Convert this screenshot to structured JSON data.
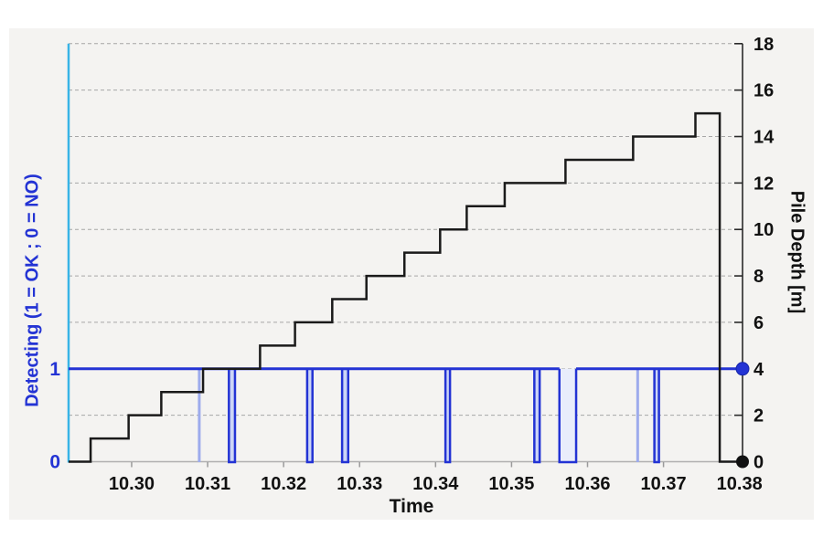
{
  "figure": {
    "x_axis": {
      "label": "Time",
      "range": [
        10.2917,
        10.3804
      ],
      "ticks": [
        {
          "label": "10.30",
          "value": 10.3
        },
        {
          "label": "10.31",
          "value": 10.31
        },
        {
          "label": "10.32",
          "value": 10.32
        },
        {
          "label": "10.33",
          "value": 10.33
        },
        {
          "label": "10.34",
          "value": 10.34
        },
        {
          "label": "10.35",
          "value": 10.35
        },
        {
          "label": "10.36",
          "value": 10.36
        },
        {
          "label": "10.37",
          "value": 10.37
        },
        {
          "label": "10.38",
          "value": 10.38
        }
      ]
    },
    "right_axis": {
      "label": "Pile Depth [m]",
      "range": [
        0,
        18
      ],
      "ticks": [
        0,
        2,
        4,
        6,
        8,
        10,
        12,
        14,
        16,
        18
      ]
    },
    "left_axis": {
      "label": "Detecting (1 = OK ; 0 = NO)",
      "ticks": [
        {
          "label": "1",
          "depth": 4
        },
        {
          "label": "0",
          "depth": 0
        }
      ]
    },
    "colors": {
      "panel": "#f4f3f1",
      "grid": "#a6a6a6",
      "axis_gray": "#b0b0b0",
      "cyan_spine": "#38b4e6",
      "blue": "#2333d4",
      "blue_light": "#9dabec",
      "drop_fill": "#ccd5f6",
      "drop_fill_wide": "#e9edfb",
      "black_line": "#1a1a1a",
      "right_spine": "#2a2a2a",
      "text": "#111111"
    }
  },
  "chart_data": {
    "type": "line",
    "title": "",
    "xlabel": "Time",
    "x_range": [
      10.2917,
      10.3804
    ],
    "grid": "dashed-horizontal",
    "series": [
      {
        "name": "Pile Depth",
        "axis": "right",
        "style": "step",
        "unit": "m",
        "start": {
          "t": 10.2917,
          "depth": 0
        },
        "steps": [
          {
            "t": 10.2946,
            "depth": 1
          },
          {
            "t": 10.2996,
            "depth": 2
          },
          {
            "t": 10.3039,
            "depth": 3
          },
          {
            "t": 10.3094,
            "depth": 4
          },
          {
            "t": 10.3169,
            "depth": 5
          },
          {
            "t": 10.3215,
            "depth": 6
          },
          {
            "t": 10.3264,
            "depth": 7
          },
          {
            "t": 10.3309,
            "depth": 8
          },
          {
            "t": 10.3359,
            "depth": 9
          },
          {
            "t": 10.3406,
            "depth": 10
          },
          {
            "t": 10.3441,
            "depth": 11
          },
          {
            "t": 10.3491,
            "depth": 12
          },
          {
            "t": 10.3571,
            "depth": 13
          },
          {
            "t": 10.366,
            "depth": 14
          },
          {
            "t": 10.3742,
            "depth": 15
          }
        ],
        "drop": {
          "t": 10.3774,
          "to_depth": 0
        },
        "end": {
          "t": 10.3804,
          "depth": 0
        },
        "end_marker": true
      },
      {
        "name": "Detecting",
        "axis": "left",
        "base_value": 1,
        "plotted_at_depth": 4,
        "start_t": 10.2917,
        "end_t": 10.3804,
        "drops_to_zero": [
          {
            "start": 10.3087,
            "end": 10.3091,
            "style": "light"
          },
          {
            "start": 10.3128,
            "end": 10.3136,
            "style": "dark"
          },
          {
            "start": 10.3231,
            "end": 10.3238,
            "style": "dark"
          },
          {
            "start": 10.3277,
            "end": 10.3285,
            "style": "dark"
          },
          {
            "start": 10.3413,
            "end": 10.3419,
            "style": "dark"
          },
          {
            "start": 10.353,
            "end": 10.3537,
            "style": "dark"
          },
          {
            "start": 10.3563,
            "end": 10.3585,
            "style": "dark-wide"
          },
          {
            "start": 10.3664,
            "end": 10.3668,
            "style": "light"
          },
          {
            "start": 10.3688,
            "end": 10.3694,
            "style": "dark"
          }
        ],
        "end_marker": true
      }
    ]
  }
}
